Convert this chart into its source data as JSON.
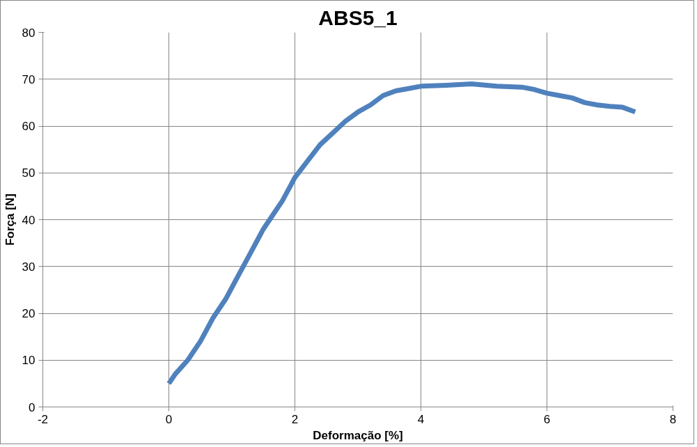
{
  "chart_data": {
    "type": "line",
    "title": "ABS5_1",
    "xlabel": "Deformação [%]",
    "ylabel": "Força [N]",
    "xlim": [
      -2,
      8
    ],
    "xticks": [
      -2,
      0,
      2,
      4,
      6,
      8
    ],
    "ylim": [
      0,
      80
    ],
    "yticks": [
      0,
      10,
      20,
      30,
      40,
      50,
      60,
      70,
      80
    ],
    "grid": true,
    "marker": "none",
    "line_style": "solid",
    "series": [
      {
        "color": "#4f81bd",
        "x": [
          0,
          0.1,
          0.2,
          0.3,
          0.4,
          0.5,
          0.6,
          0.7,
          0.8,
          0.9,
          1.0,
          1.1,
          1.2,
          1.3,
          1.4,
          1.5,
          1.6,
          1.7,
          1.8,
          1.9,
          2.0,
          2.2,
          2.4,
          2.6,
          2.8,
          3.0,
          3.2,
          3.4,
          3.6,
          3.8,
          4.0,
          4.4,
          4.8,
          5.2,
          5.6,
          5.8,
          6.0,
          6.2,
          6.4,
          6.6,
          6.8,
          7.0,
          7.2,
          7.4
        ],
        "values": [
          5,
          7,
          8.5,
          10,
          12,
          14,
          16.5,
          19,
          21,
          23,
          25.5,
          28,
          30.5,
          33,
          35.5,
          38,
          40,
          42,
          44,
          46.5,
          49,
          52.5,
          56,
          58.5,
          61,
          63,
          64.5,
          66.5,
          67.5,
          68,
          68.5,
          68.7,
          69,
          68.5,
          68.3,
          67.8,
          67,
          66.5,
          66,
          65,
          64.5,
          64.2,
          64,
          63
        ]
      }
    ]
  }
}
